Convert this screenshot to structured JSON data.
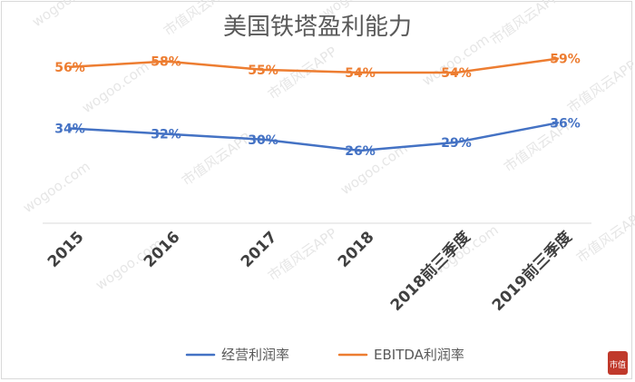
{
  "chart_data": {
    "type": "line",
    "title": "美国铁塔盈利能力",
    "categories": [
      "2015",
      "2016",
      "2017",
      "2018",
      "2018前三季度",
      "2019前三季度"
    ],
    "series": [
      {
        "name": "经营利润率",
        "values": [
          34,
          32,
          30,
          26,
          29,
          36
        ],
        "labels": [
          "34%",
          "32%",
          "30%",
          "26%",
          "29%",
          "36%"
        ],
        "color": "#4472c4"
      },
      {
        "name": "EBITDA利润率",
        "values": [
          56,
          58,
          55,
          54,
          54,
          59
        ],
        "labels": [
          "56%",
          "58%",
          "55%",
          "54%",
          "54%",
          "59%"
        ],
        "color": "#ed7d31"
      }
    ],
    "ylim": [
      0,
      70
    ],
    "grid": false,
    "legend_position": "bottom",
    "xlabel": "",
    "ylabel": ""
  },
  "watermark": {
    "text": "市值风云APP",
    "url_text": "wogoo.com",
    "logo_text": "市值"
  }
}
